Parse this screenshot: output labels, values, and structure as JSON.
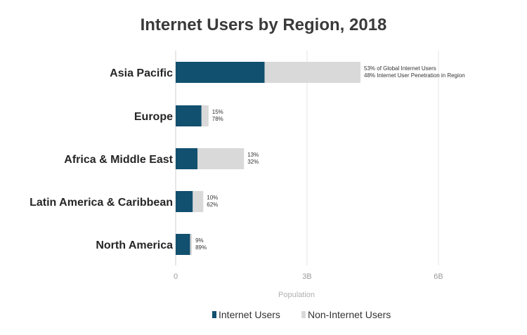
{
  "chart_data": {
    "type": "bar",
    "orientation": "horizontal",
    "stacked": true,
    "title": "Internet Users by Region, 2018",
    "xlabel": "Population",
    "ylabel": "",
    "xlim": [
      0,
      6.4
    ],
    "xticks": [
      0,
      3,
      6
    ],
    "xtick_labels": [
      "0",
      "3B",
      "6B"
    ],
    "grid": "vertical",
    "legend_position": "bottom",
    "categories": [
      "Asia Pacific",
      "Europe",
      "Africa & Middle East",
      "Latin America & Caribbean",
      "North America"
    ],
    "series": [
      {
        "name": "Internet Users",
        "color": "#12506f",
        "values": [
          2.03,
          0.59,
          0.5,
          0.39,
          0.33
        ]
      },
      {
        "name": "Non-Internet Users",
        "color": "#d9d9d9",
        "values": [
          2.19,
          0.16,
          1.06,
          0.24,
          0.04
        ]
      }
    ],
    "annotations": [
      [
        "53% of Global Internet Users",
        "48% Internet User Penetration in Region"
      ],
      [
        "15%",
        "78%"
      ],
      [
        "13%",
        "32%"
      ],
      [
        "10%",
        "62%"
      ],
      [
        "9%",
        "89%"
      ]
    ]
  }
}
